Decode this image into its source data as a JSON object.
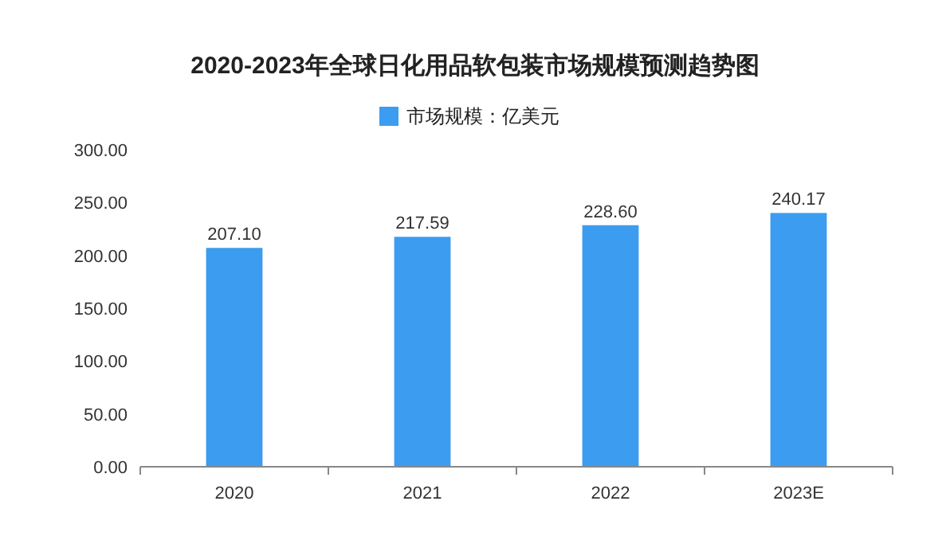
{
  "chart_data": {
    "type": "bar",
    "title": "2020-2023年全球日化用品软包装市场规模预测趋势图",
    "categories": [
      "2020",
      "2021",
      "2022",
      "2023E"
    ],
    "series": [
      {
        "name": "市场规模：亿美元",
        "color": "#3c9cf0",
        "values": [
          207.1,
          217.59,
          228.6,
          240.17
        ],
        "value_labels": [
          "207.10",
          "217.59",
          "228.60",
          "240.17"
        ]
      }
    ],
    "ylim": [
      0,
      300
    ],
    "yticks": [
      {
        "value": 0,
        "label": "0.00"
      },
      {
        "value": 50,
        "label": "50.00"
      },
      {
        "value": 100,
        "label": "100.00"
      },
      {
        "value": 150,
        "label": "150.00"
      },
      {
        "value": 200,
        "label": "200.00"
      },
      {
        "value": 250,
        "label": "250.00"
      },
      {
        "value": 300,
        "label": "300.00"
      }
    ],
    "legend": "top",
    "grid": false
  }
}
